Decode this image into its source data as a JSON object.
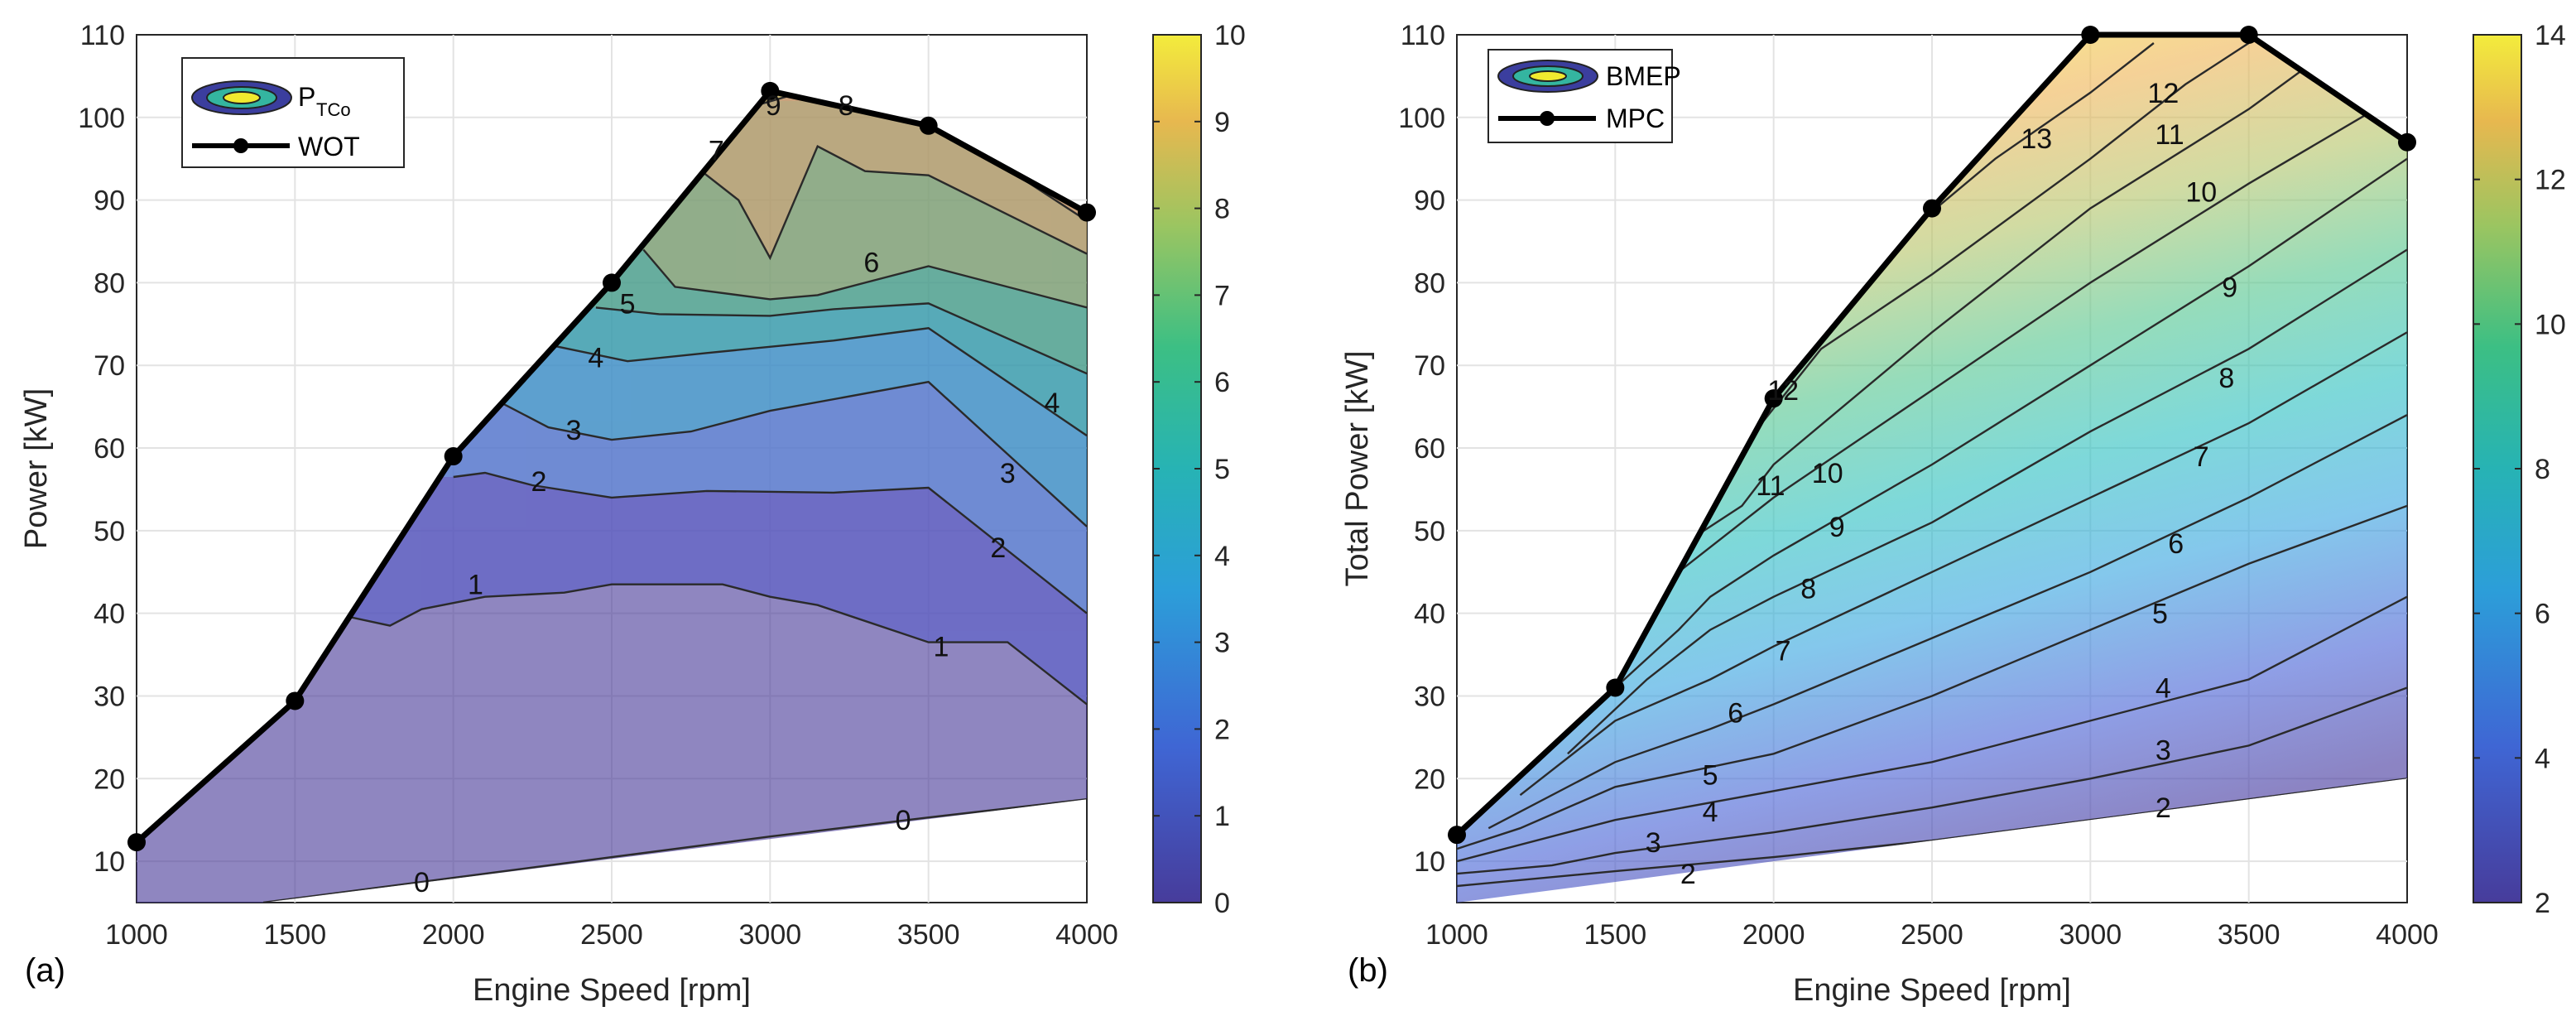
{
  "chart_data": [
    {
      "type": "contour",
      "panel_label": "(a)",
      "xlabel": "Engine Speed [rpm]",
      "ylabel": "Power [kW]",
      "xlim": [
        1000,
        4000
      ],
      "ylim": [
        5,
        110
      ],
      "xticks": [
        "1000",
        "1500",
        "2000",
        "2500",
        "3000",
        "3500",
        "4000"
      ],
      "yticks": [
        "10",
        "20",
        "30",
        "40",
        "50",
        "60",
        "70",
        "80",
        "90",
        "100",
        "110"
      ],
      "colorbar": {
        "min": 0,
        "max": 10,
        "ticks": [
          "0",
          "1",
          "2",
          "3",
          "4",
          "5",
          "6",
          "7",
          "8",
          "9",
          "10"
        ]
      },
      "legend": [
        {
          "label": "P",
          "subscript": "TCo",
          "kind": "contour"
        },
        {
          "label": "WOT",
          "kind": "line"
        }
      ],
      "boundary_series": {
        "name": "WOT",
        "x": [
          1000,
          1500,
          2000,
          2500,
          3000,
          3500,
          4000
        ],
        "y": [
          12.3,
          29.4,
          59.0,
          80.0,
          103.2,
          99.0,
          88.5
        ]
      },
      "contours": [
        {
          "level": 0,
          "label": "0",
          "points": [
            [
              1400,
              5
            ],
            [
              2500,
              10.5
            ],
            [
              3000,
              13
            ],
            [
              3500,
              15.3
            ],
            [
              4000,
              17.5
            ]
          ],
          "label_at": [
            [
              1900,
              7.5
            ],
            [
              3420,
              15
            ]
          ]
        },
        {
          "level": 1,
          "label": "1",
          "points": [
            [
              1600,
              38.5
            ],
            [
              1680,
              39.5
            ],
            [
              1800,
              38.5
            ],
            [
              1900,
              40.5
            ],
            [
              2100,
              42
            ],
            [
              2350,
              42.5
            ],
            [
              2500,
              43.5
            ],
            [
              2850,
              43.5
            ],
            [
              3000,
              42
            ],
            [
              3150,
              41
            ],
            [
              3500,
              36.5
            ],
            [
              3750,
              36.5
            ],
            [
              4000,
              29
            ]
          ],
          "label_at": [
            [
              2070,
              43.5
            ],
            [
              3540,
              36
            ]
          ]
        },
        {
          "level": 2,
          "label": "2",
          "points": [
            [
              2000,
              56.5
            ],
            [
              2100,
              57
            ],
            [
              2250,
              55.5
            ],
            [
              2500,
              54
            ],
            [
              2800,
              54.8
            ],
            [
              3200,
              54.6
            ],
            [
              3500,
              55.2
            ],
            [
              4000,
              40
            ]
          ],
          "label_at": [
            [
              2270,
              56
            ],
            [
              3720,
              48
            ]
          ]
        },
        {
          "level": 3,
          "label": "3",
          "points": [
            [
              2150,
              65.5
            ],
            [
              2300,
              62.5
            ],
            [
              2500,
              61
            ],
            [
              2750,
              62
            ],
            [
              3000,
              64.5
            ],
            [
              3500,
              68
            ],
            [
              4000,
              50.5
            ]
          ],
          "label_at": [
            [
              2380,
              62.2
            ],
            [
              3750,
              57
            ]
          ]
        },
        {
          "level": 4,
          "label": "4",
          "points": [
            [
              2300,
              72.5
            ],
            [
              2550,
              70.5
            ],
            [
              2800,
              71.5
            ],
            [
              3200,
              73
            ],
            [
              3500,
              74.5
            ],
            [
              4000,
              61.5
            ]
          ],
          "label_at": [
            [
              2450,
              71
            ],
            [
              3890,
              65.5
            ]
          ]
        },
        {
          "level": 5,
          "label": "5",
          "points": [
            [
              2450,
              77
            ],
            [
              2650,
              76.2
            ],
            [
              3000,
              76
            ],
            [
              3200,
              76.8
            ],
            [
              3500,
              77.5
            ],
            [
              4000,
              69
            ]
          ],
          "label_at": [
            [
              2550,
              77.5
            ]
          ]
        },
        {
          "level": 6,
          "label": "6",
          "points": [
            [
              2600,
              84
            ],
            [
              2700,
              79.5
            ],
            [
              3000,
              78
            ],
            [
              3150,
              78.5
            ],
            [
              3300,
              80
            ],
            [
              3500,
              82
            ],
            [
              4000,
              77
            ]
          ],
          "label_at": [
            [
              3320,
              82.5
            ]
          ]
        },
        {
          "level": 7,
          "label": "7",
          "points": [
            [
              2750,
              94.5
            ],
            [
              2900,
              90
            ],
            [
              3000,
              83
            ],
            [
              3150,
              96.5
            ],
            [
              3300,
              93.5
            ],
            [
              3500,
              93
            ],
            [
              4000,
              83.5
            ]
          ],
          "label_at": [
            [
              2830,
              96
            ]
          ]
        },
        {
          "level": 8,
          "label": "8",
          "points": [
            [
              3150,
              102
            ],
            [
              3300,
              101
            ],
            [
              3420,
              100.5
            ],
            [
              3600,
              97.5
            ],
            [
              4000,
              87.5
            ]
          ],
          "label_at": [
            [
              3240,
              101.5
            ]
          ]
        },
        {
          "level": 9,
          "label": "9",
          "points": [
            [
              2960,
              101.5
            ],
            [
              3050,
              102.5
            ]
          ],
          "label_at": [
            [
              3010,
              101.5
            ]
          ]
        }
      ]
    },
    {
      "type": "contour",
      "panel_label": "(b)",
      "xlabel": "Engine Speed [rpm]",
      "ylabel": "Total Power [kW]",
      "xlim": [
        1000,
        4000
      ],
      "ylim": [
        5,
        110
      ],
      "xticks": [
        "1000",
        "1500",
        "2000",
        "2500",
        "3000",
        "3500",
        "4000"
      ],
      "yticks": [
        "10",
        "20",
        "30",
        "40",
        "50",
        "60",
        "70",
        "80",
        "90",
        "100",
        "110"
      ],
      "colorbar": {
        "min": 2,
        "max": 14,
        "ticks": [
          "2",
          "4",
          "6",
          "8",
          "10",
          "12",
          "14"
        ]
      },
      "legend": [
        {
          "label": "BMEP",
          "kind": "contour"
        },
        {
          "label": "MPC",
          "kind": "line"
        }
      ],
      "boundary_series": {
        "name": "MPC",
        "x": [
          1000,
          1500,
          2000,
          2500,
          3000,
          3500,
          4000
        ],
        "y": [
          13.2,
          31.0,
          66.0,
          89.0,
          110.0,
          110.0,
          97.0
        ]
      },
      "lower_boundary": {
        "x": [
          1000,
          4000
        ],
        "y": [
          5,
          20
        ]
      },
      "contours": [
        {
          "level": 2,
          "label": "2",
          "points": [
            [
              1000,
              7
            ],
            [
              1500,
              8.8
            ],
            [
              2000,
              10.5
            ],
            [
              2500,
              12.5
            ],
            [
              3000,
              15
            ],
            [
              3500,
              17.5
            ],
            [
              4000,
              20
            ]
          ],
          "label_at": [
            [
              1730,
              8.5
            ],
            [
              3230,
              16.5
            ]
          ]
        },
        {
          "level": 3,
          "label": "3",
          "points": [
            [
              1000,
              8.5
            ],
            [
              1300,
              9.5
            ],
            [
              1500,
              11
            ],
            [
              2000,
              13.5
            ],
            [
              2500,
              16.5
            ],
            [
              3000,
              20
            ],
            [
              3500,
              24
            ],
            [
              4000,
              31
            ]
          ],
          "label_at": [
            [
              1620,
              12.3
            ],
            [
              3230,
              23.5
            ]
          ]
        },
        {
          "level": 4,
          "label": "4",
          "points": [
            [
              1000,
              10
            ],
            [
              1500,
              15
            ],
            [
              2000,
              18.5
            ],
            [
              2500,
              22
            ],
            [
              3000,
              27
            ],
            [
              3500,
              32
            ],
            [
              4000,
              42
            ]
          ],
          "label_at": [
            [
              1800,
              16
            ],
            [
              3230,
              31
            ]
          ]
        },
        {
          "level": 5,
          "label": "5",
          "points": [
            [
              1000,
              11.5
            ],
            [
              1200,
              14
            ],
            [
              1500,
              19
            ],
            [
              2000,
              23
            ],
            [
              2500,
              30
            ],
            [
              3000,
              38
            ],
            [
              3500,
              46
            ],
            [
              4000,
              53
            ]
          ],
          "label_at": [
            [
              1800,
              20.5
            ],
            [
              3220,
              40
            ]
          ]
        },
        {
          "level": 6,
          "label": "6",
          "points": [
            [
              1100,
              14
            ],
            [
              1500,
              22
            ],
            [
              1800,
              26
            ],
            [
              2000,
              29
            ],
            [
              2500,
              37
            ],
            [
              3000,
              45
            ],
            [
              3500,
              54
            ],
            [
              4000,
              64
            ]
          ],
          "label_at": [
            [
              1880,
              28
            ],
            [
              3270,
              48.5
            ]
          ]
        },
        {
          "level": 7,
          "label": "7",
          "points": [
            [
              1200,
              18
            ],
            [
              1500,
              27
            ],
            [
              1800,
              32
            ],
            [
              2000,
              36
            ],
            [
              2500,
              45
            ],
            [
              3000,
              54
            ],
            [
              3500,
              63
            ],
            [
              4000,
              74
            ]
          ],
          "label_at": [
            [
              2030,
              35.5
            ],
            [
              3350,
              59
            ]
          ]
        },
        {
          "level": 8,
          "label": "8",
          "points": [
            [
              1350,
              23
            ],
            [
              1600,
              32
            ],
            [
              1800,
              38
            ],
            [
              2000,
              42
            ],
            [
              2500,
              51
            ],
            [
              3000,
              62
            ],
            [
              3500,
              72
            ],
            [
              4000,
              84
            ]
          ],
          "label_at": [
            [
              2110,
              43
            ],
            [
              3430,
              68.5
            ]
          ]
        },
        {
          "level": 9,
          "label": "9",
          "points": [
            [
              1500,
              31
            ],
            [
              1700,
              38
            ],
            [
              1800,
              42
            ],
            [
              2000,
              47
            ],
            [
              2500,
              58
            ],
            [
              3000,
              70
            ],
            [
              3500,
              82
            ],
            [
              4000,
              95
            ]
          ],
          "label_at": [
            [
              2200,
              50.5
            ],
            [
              3440,
              79.5
            ]
          ]
        },
        {
          "level": 10,
          "label": "10",
          "points": [
            [
              1600,
              42
            ],
            [
              1800,
              48
            ],
            [
              2000,
              54
            ],
            [
              2500,
              67
            ],
            [
              3000,
              80
            ],
            [
              3500,
              92
            ],
            [
              3900,
              101
            ]
          ],
          "label_at": [
            [
              2170,
              57
            ],
            [
              3350,
              91
            ]
          ]
        },
        {
          "level": 11,
          "label": "11",
          "points": [
            [
              1700,
              48
            ],
            [
              1900,
              53
            ],
            [
              2000,
              58
            ],
            [
              2500,
              74
            ],
            [
              3000,
              89
            ],
            [
              3500,
              101
            ],
            [
              3750,
              108
            ]
          ],
          "label_at": [
            [
              1990,
              55.5
            ],
            [
              3250,
              98
            ]
          ]
        },
        {
          "level": 12,
          "label": "12",
          "points": [
            [
              1900,
              60
            ],
            [
              2150,
              72
            ],
            [
              2500,
              81
            ],
            [
              3000,
              95
            ],
            [
              3300,
              104
            ],
            [
              3500,
              109
            ]
          ],
          "label_at": [
            [
              2030,
              67
            ],
            [
              3230,
              103
            ]
          ]
        },
        {
          "level": 13,
          "label": "13",
          "points": [
            [
              2450,
              87
            ],
            [
              2700,
              95
            ],
            [
              3000,
              103
            ],
            [
              3200,
              109
            ]
          ],
          "label_at": [
            [
              2830,
              97.5
            ]
          ]
        }
      ]
    }
  ]
}
